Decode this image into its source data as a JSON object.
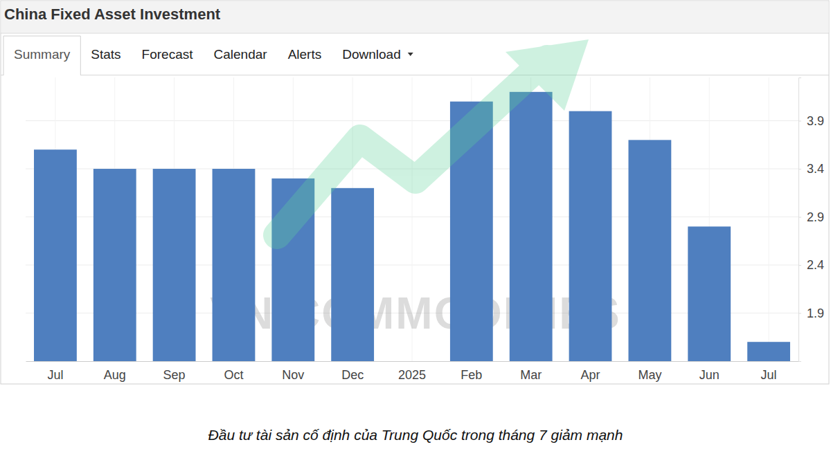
{
  "chart_data": {
    "type": "bar",
    "title": "China Fixed Asset Investment",
    "tabs": [
      "Summary",
      "Stats",
      "Forecast",
      "Calendar",
      "Alerts",
      "Download"
    ],
    "categories": [
      "Jul",
      "Aug",
      "Sep",
      "Oct",
      "Nov",
      "Dec",
      "2025",
      "Feb",
      "Mar",
      "Apr",
      "May",
      "Jun",
      "Jul"
    ],
    "values": [
      3.6,
      3.4,
      3.4,
      3.4,
      3.3,
      3.2,
      null,
      4.1,
      4.2,
      4.0,
      3.7,
      2.8,
      1.6
    ],
    "color": "#4f7fbf",
    "ylim": [
      1.4,
      4.35
    ],
    "yticks": [
      1.9,
      2.4,
      2.9,
      3.4,
      3.9
    ],
    "grid": true,
    "watermark": "VN COMMODITIES",
    "caption": "Đầu tư tài sản cố định của Trung Quốc trong tháng 7 giảm mạnh"
  }
}
